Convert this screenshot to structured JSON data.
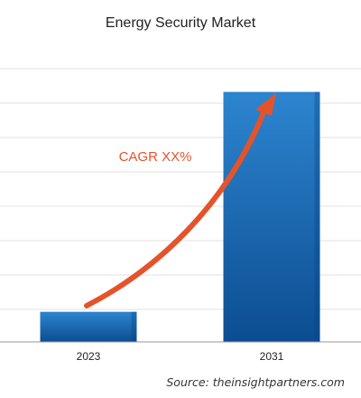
{
  "chart_data": {
    "type": "bar",
    "title": "Energy Security Market",
    "categories": [
      "2023",
      "2031"
    ],
    "values": [
      1,
      8.3
    ],
    "ylim": [
      0,
      10
    ],
    "grid": true,
    "legend": "none",
    "annotation": "CAGR XX%",
    "source": "Source: theinsightpartners.com"
  },
  "colors": {
    "bar_top": "#2d85cf",
    "bar_bottom": "#0c4d91",
    "bar_shade": "#0a4280",
    "arrow": "#e5532a",
    "cagr_text": "#e5532a"
  },
  "icons": {
    "growth_arrow": "trend-arrow-icon"
  }
}
